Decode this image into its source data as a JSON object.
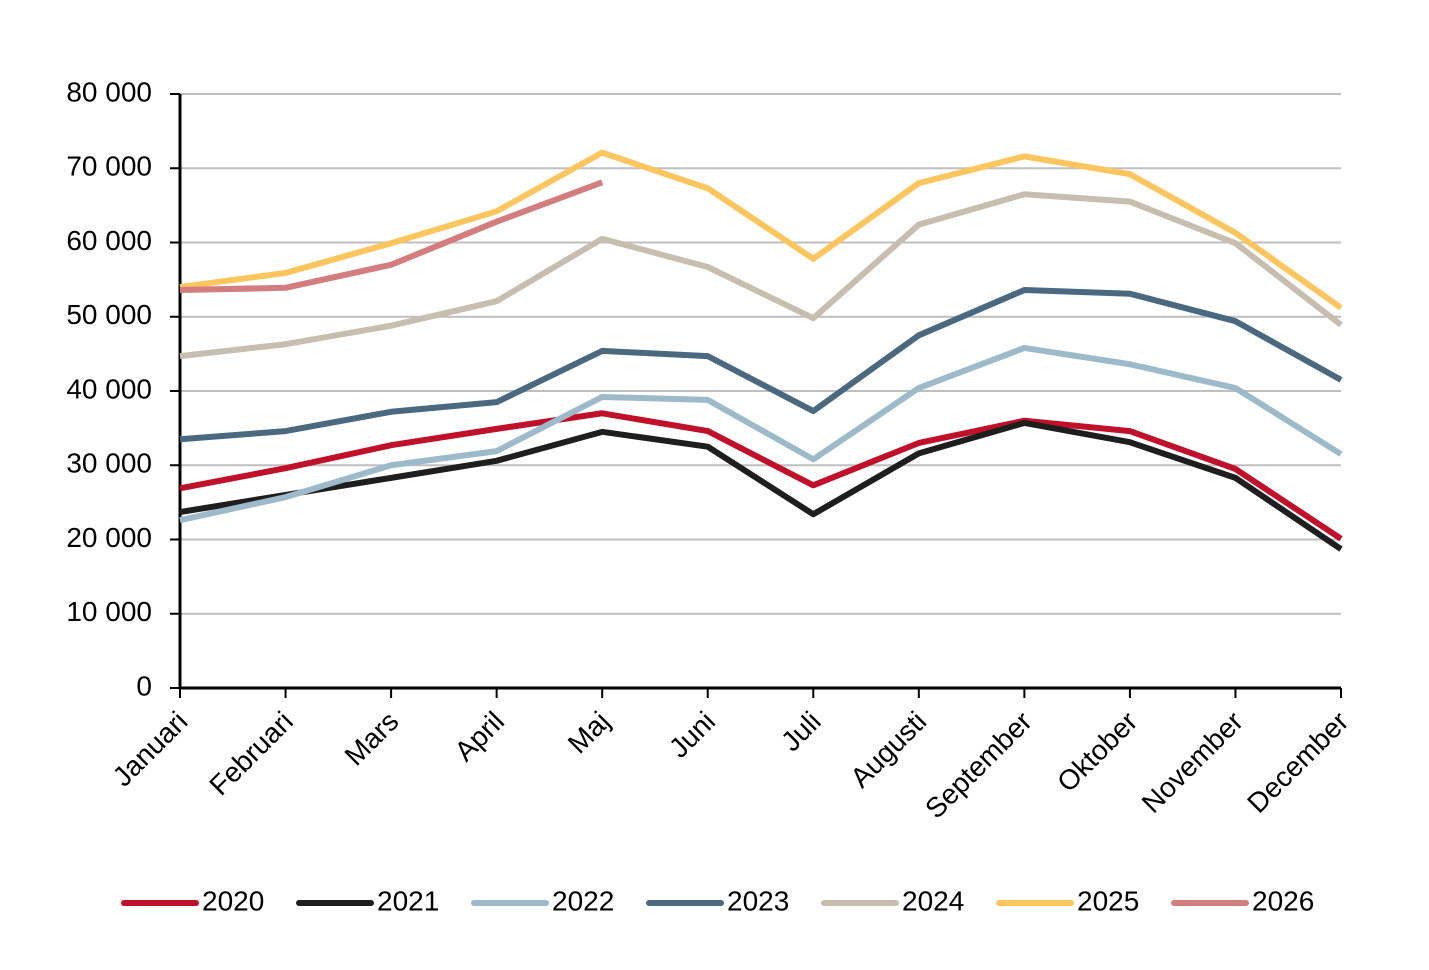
{
  "chart_data": {
    "type": "line",
    "categories": [
      "Januari",
      "Februari",
      "Mars",
      "April",
      "Maj",
      "Juni",
      "Juli",
      "Augusti",
      "September",
      "Oktober",
      "November",
      "December"
    ],
    "series": [
      {
        "name": "2020",
        "color": "#c0102a",
        "values": [
          26900,
          29600,
          32700,
          34900,
          37000,
          34600,
          27300,
          33000,
          36000,
          34600,
          29500,
          20100
        ]
      },
      {
        "name": "2021",
        "color": "#1e1e1e",
        "values": [
          23700,
          26000,
          28300,
          30600,
          34500,
          32500,
          23400,
          31600,
          35700,
          33100,
          28300,
          18700
        ]
      },
      {
        "name": "2022",
        "color": "#9dbacb",
        "values": [
          22600,
          25700,
          30000,
          31900,
          39200,
          38800,
          30800,
          40400,
          45800,
          43600,
          40400,
          31500
        ]
      },
      {
        "name": "2023",
        "color": "#4a6880",
        "values": [
          33500,
          34600,
          37200,
          38500,
          45400,
          44700,
          37300,
          47500,
          53600,
          53100,
          49400,
          41500
        ]
      },
      {
        "name": "2024",
        "color": "#c8beb0",
        "values": [
          44700,
          46300,
          48800,
          52100,
          60500,
          56700,
          49800,
          62400,
          66500,
          65500,
          59900,
          48900
        ]
      },
      {
        "name": "2025",
        "color": "#fcc55e",
        "values": [
          54000,
          55900,
          59900,
          64200,
          72100,
          67300,
          57800,
          68000,
          71600,
          69200,
          61300,
          51200
        ]
      },
      {
        "name": "2026",
        "color": "#d47d7f",
        "values": [
          53600,
          53900,
          57000,
          62800,
          68100,
          null,
          null,
          null,
          null,
          null,
          null,
          null
        ]
      }
    ],
    "ylim": [
      0,
      80000
    ],
    "yticks": [
      0,
      {
        "value": 10000,
        "label": "10 000"
      },
      {
        "value": 20000,
        "label": "20 000"
      },
      {
        "value": 30000,
        "label": "30 000"
      },
      {
        "value": 40000,
        "label": "40 000"
      },
      {
        "value": 50000,
        "label": "50 000"
      },
      {
        "value": 60000,
        "label": "60 000"
      },
      {
        "value": 70000,
        "label": "70 000"
      },
      {
        "value": 80000,
        "label": "80 000"
      }
    ],
    "grid": true,
    "legend": "bottom"
  }
}
